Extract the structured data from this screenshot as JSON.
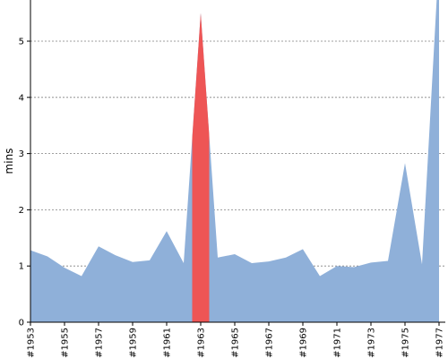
{
  "chart_data": {
    "type": "area",
    "ylabel": "mins",
    "xlabel": "",
    "ylim": [
      0,
      5.7
    ],
    "yticks": [
      0,
      1,
      2,
      3,
      4,
      5
    ],
    "x": [
      "#1953",
      "#1954",
      "#1955",
      "#1956",
      "#1957",
      "#1958",
      "#1959",
      "#1960",
      "#1961",
      "#1962",
      "#1963",
      "#1964",
      "#1965",
      "#1966",
      "#1967",
      "#1968",
      "#1969",
      "#1970",
      "#1971",
      "#1972",
      "#1973",
      "#1974",
      "#1975",
      "#1976",
      "#1977"
    ],
    "xtick_labels": [
      "#1953",
      "#1955",
      "#1957",
      "#1959",
      "#1961",
      "#1963",
      "#1965",
      "#1967",
      "#1969",
      "#1971",
      "#1973",
      "#1975",
      "#1977"
    ],
    "values": [
      1.28,
      1.17,
      0.97,
      0.82,
      1.35,
      1.19,
      1.07,
      1.1,
      1.62,
      1.05,
      5.5,
      1.15,
      1.21,
      1.05,
      1.08,
      1.15,
      1.3,
      0.82,
      1.0,
      0.98,
      1.06,
      1.09,
      2.83,
      1.03,
      6.5
    ],
    "highlight_index": 10,
    "grid": true,
    "colors": {
      "area": "#8fb0d9",
      "highlight": "#ee5555",
      "grid": "#808080",
      "axis": "#000000"
    }
  }
}
